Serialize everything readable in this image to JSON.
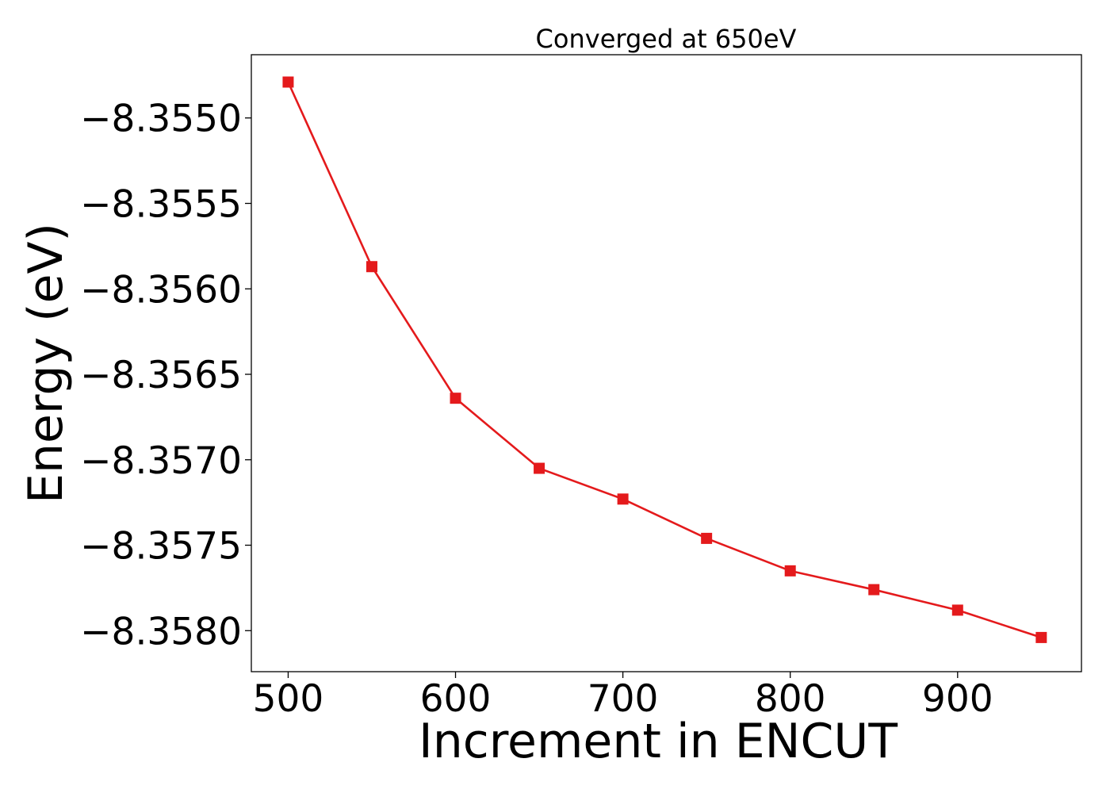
{
  "chart_data": {
    "type": "line",
    "title": "Converged at 650eV",
    "xlabel": "Increment in ENCUT",
    "ylabel": "Energy (eV)",
    "xlim": [
      478,
      974
    ],
    "ylim": [
      -8.35824,
      -8.35463
    ],
    "x_ticks": [
      500,
      600,
      700,
      800,
      900
    ],
    "x_tick_labels": [
      "500",
      "600",
      "700",
      "800",
      "900"
    ],
    "y_ticks": [
      -8.355,
      -8.3555,
      -8.356,
      -8.3565,
      -8.357,
      -8.3575,
      -8.358
    ],
    "y_tick_labels": [
      "−8.3550",
      "−8.3555",
      "−8.3560",
      "−8.3565",
      "−8.3570",
      "−8.3575",
      "−8.3580"
    ],
    "grid": false,
    "color": "#e41a1c",
    "marker": "square",
    "series": [
      {
        "x": [
          500,
          550,
          600,
          650,
          700,
          750,
          800,
          850,
          900,
          950
        ],
        "y": [
          -8.35479,
          -8.35587,
          -8.35664,
          -8.35705,
          -8.35723,
          -8.35746,
          -8.35765,
          -8.35776,
          -8.35788,
          -8.35804
        ]
      }
    ]
  }
}
